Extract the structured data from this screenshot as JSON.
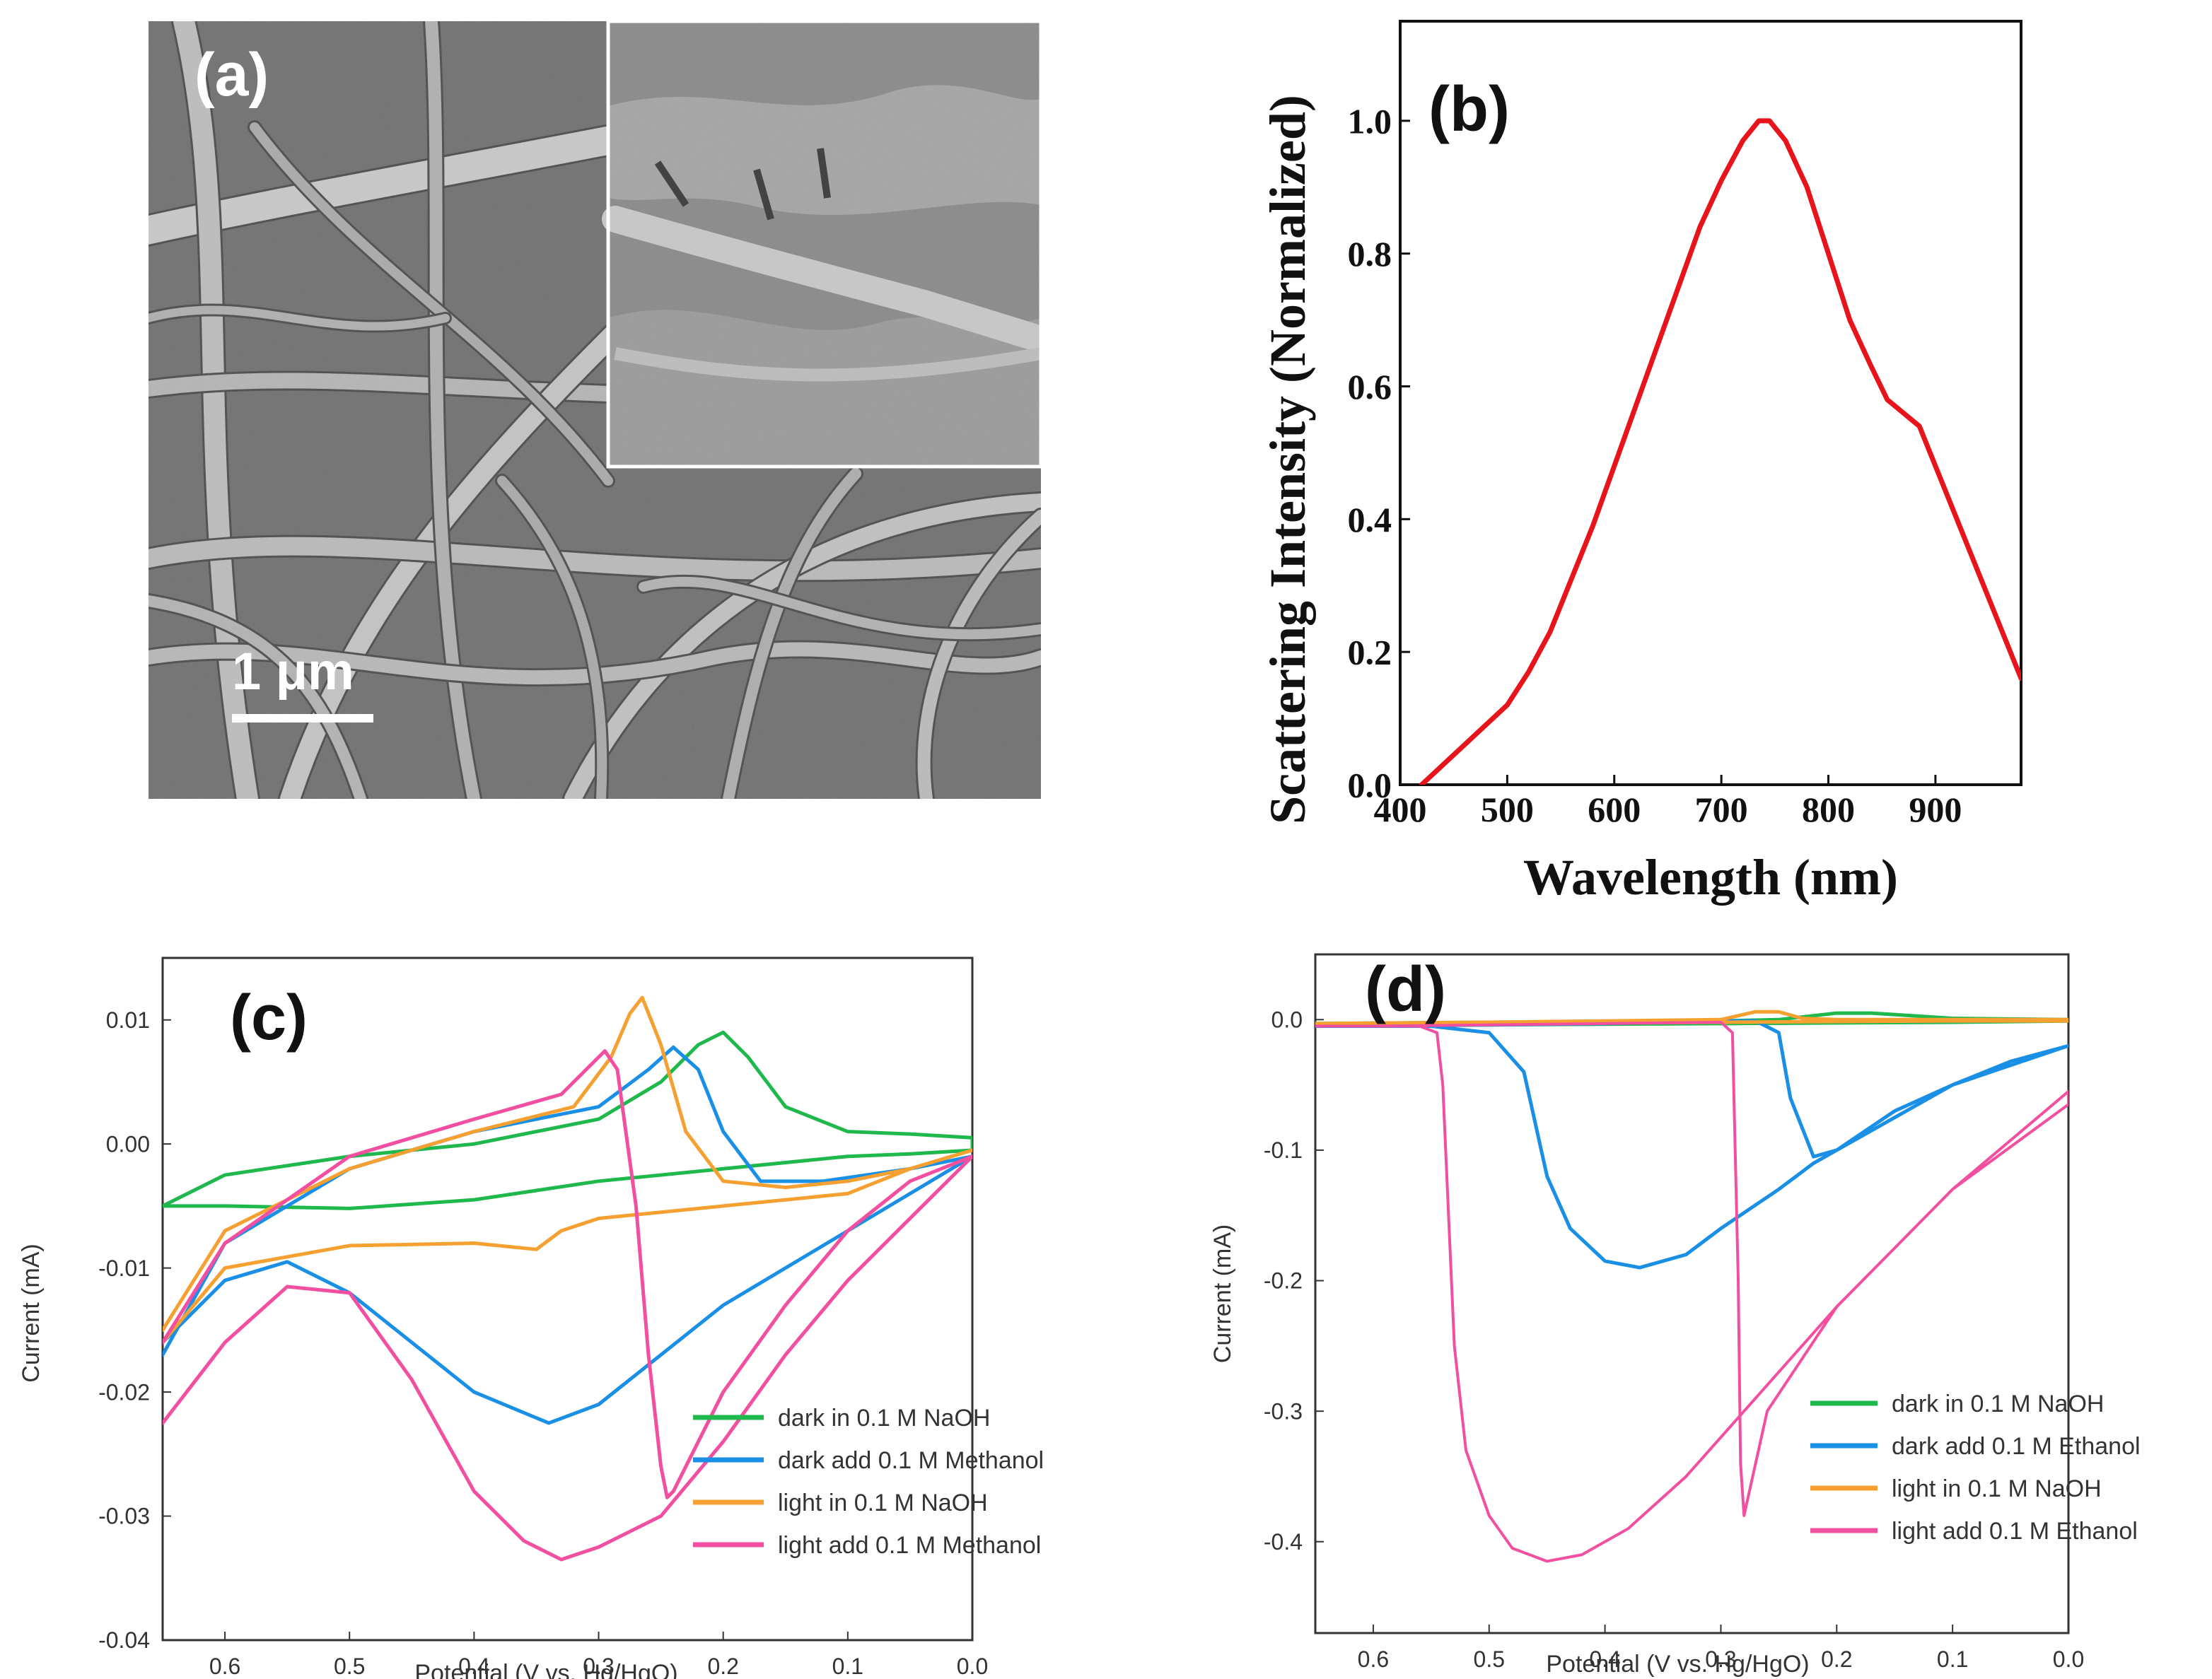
{
  "panels": {
    "a": {
      "label": "(a)",
      "scale_bar": "1 μm"
    },
    "b": {
      "label": "(b)"
    },
    "c": {
      "label": "(c)"
    },
    "d": {
      "label": "(d)"
    }
  },
  "chart_data": [
    {
      "id": "b",
      "type": "line",
      "title": "",
      "xlabel": "Wavelength (nm)",
      "ylabel": "Scattering Intensity (Normalized)",
      "xlim": [
        400,
        980
      ],
      "ylim": [
        0,
        1.15
      ],
      "xticks": [
        400,
        500,
        600,
        700,
        800,
        900
      ],
      "yticks": [
        0.0,
        0.2,
        0.4,
        0.6,
        0.8,
        1.0
      ],
      "ytick_labels": [
        "0.0",
        "0.2",
        "0.4",
        "0.6",
        "0.8",
        "1.0"
      ],
      "series": [
        {
          "name": "scattering",
          "color": "#e8141b",
          "x": [
            420,
            440,
            460,
            480,
            500,
            520,
            540,
            560,
            580,
            600,
            620,
            640,
            660,
            680,
            700,
            720,
            735,
            745,
            760,
            780,
            800,
            820,
            840,
            855,
            870,
            885,
            900,
            920,
            940,
            960,
            980
          ],
          "y": [
            0.0,
            0.03,
            0.06,
            0.09,
            0.12,
            0.17,
            0.23,
            0.31,
            0.39,
            0.48,
            0.57,
            0.66,
            0.75,
            0.84,
            0.91,
            0.97,
            1.0,
            1.0,
            0.97,
            0.9,
            0.8,
            0.7,
            0.63,
            0.58,
            0.56,
            0.54,
            0.48,
            0.4,
            0.32,
            0.24,
            0.16
          ]
        }
      ]
    },
    {
      "id": "c",
      "type": "line",
      "title": "",
      "xlabel": "Potential (V vs. Hg/HgO)",
      "ylabel": "Current (mA)",
      "xlim": [
        0.65,
        0.0
      ],
      "ylim": [
        -0.04,
        0.015
      ],
      "xticks": [
        0.6,
        0.5,
        0.4,
        0.3,
        0.2,
        0.1,
        0.0
      ],
      "xtick_labels": [
        "0.6",
        "0.5",
        "0.4",
        "0.3",
        "0.2",
        "0.1",
        "0.0"
      ],
      "yticks": [
        0.01,
        0.0,
        -0.01,
        -0.02,
        -0.03,
        -0.04
      ],
      "ytick_labels": [
        "0.01",
        "0.00",
        "-0.01",
        "-0.02",
        "-0.03",
        "-0.04"
      ],
      "legend": "bottom-right",
      "series": [
        {
          "name": "dark in 0.1 M NaOH",
          "color": "#1fb84c",
          "x": [
            0.65,
            0.6,
            0.5,
            0.4,
            0.3,
            0.25,
            0.22,
            0.2,
            0.18,
            0.15,
            0.1,
            0.05,
            0.0,
            0.0,
            0.05,
            0.1,
            0.2,
            0.3,
            0.4,
            0.5,
            0.6,
            0.65
          ],
          "y": [
            -0.005,
            -0.0025,
            -0.001,
            0.0,
            0.002,
            0.005,
            0.008,
            0.009,
            0.007,
            0.003,
            0.001,
            0.0008,
            0.0005,
            -0.0005,
            -0.0008,
            -0.001,
            -0.002,
            -0.003,
            -0.0045,
            -0.0052,
            -0.005,
            -0.005
          ]
        },
        {
          "name": "dark add 0.1 M Methanol",
          "color": "#1a8fe6",
          "x": [
            0.65,
            0.6,
            0.5,
            0.4,
            0.3,
            0.26,
            0.24,
            0.22,
            0.2,
            0.17,
            0.12,
            0.05,
            0.0,
            0.0,
            0.05,
            0.1,
            0.2,
            0.25,
            0.3,
            0.34,
            0.4,
            0.5,
            0.55,
            0.6,
            0.65
          ],
          "y": [
            -0.017,
            -0.008,
            -0.002,
            0.001,
            0.003,
            0.006,
            0.0078,
            0.006,
            0.001,
            -0.003,
            -0.003,
            -0.002,
            -0.001,
            -0.001,
            -0.004,
            -0.007,
            -0.013,
            -0.017,
            -0.021,
            -0.0225,
            -0.02,
            -0.012,
            -0.0095,
            -0.011,
            -0.016
          ]
        },
        {
          "name": "light in 0.1 M NaOH",
          "color": "#f5a031",
          "x": [
            0.65,
            0.6,
            0.5,
            0.4,
            0.32,
            0.29,
            0.275,
            0.265,
            0.25,
            0.23,
            0.2,
            0.15,
            0.1,
            0.05,
            0.0,
            0.0,
            0.05,
            0.1,
            0.2,
            0.3,
            0.33,
            0.35,
            0.4,
            0.5,
            0.6,
            0.65
          ],
          "y": [
            -0.015,
            -0.007,
            -0.002,
            0.001,
            0.003,
            0.007,
            0.0105,
            0.0118,
            0.008,
            0.001,
            -0.003,
            -0.0035,
            -0.003,
            -0.002,
            -0.0005,
            -0.0005,
            -0.002,
            -0.004,
            -0.005,
            -0.006,
            -0.007,
            -0.0085,
            -0.008,
            -0.0082,
            -0.01,
            -0.016
          ]
        },
        {
          "name": "light add 0.1 M Methanol",
          "color": "#f24fa0",
          "x": [
            0.65,
            0.6,
            0.5,
            0.4,
            0.33,
            0.305,
            0.295,
            0.285,
            0.27,
            0.26,
            0.25,
            0.245,
            0.24,
            0.23,
            0.2,
            0.15,
            0.1,
            0.05,
            0.0,
            0.0,
            0.05,
            0.1,
            0.15,
            0.2,
            0.25,
            0.3,
            0.33,
            0.36,
            0.4,
            0.45,
            0.5,
            0.55,
            0.6,
            0.65
          ],
          "y": [
            -0.016,
            -0.008,
            -0.001,
            0.002,
            0.004,
            0.0065,
            0.0075,
            0.006,
            -0.005,
            -0.017,
            -0.026,
            -0.0285,
            -0.028,
            -0.026,
            -0.02,
            -0.013,
            -0.007,
            -0.003,
            -0.001,
            -0.001,
            -0.006,
            -0.011,
            -0.017,
            -0.024,
            -0.03,
            -0.0325,
            -0.0335,
            -0.032,
            -0.028,
            -0.019,
            -0.012,
            -0.0115,
            -0.016,
            -0.0225
          ]
        }
      ]
    },
    {
      "id": "d",
      "type": "line",
      "title": "",
      "xlabel": "Potential (V vs. Hg/HgO)",
      "ylabel": "Current (mA)",
      "xlim": [
        0.65,
        0.0
      ],
      "ylim": [
        -0.47,
        0.05
      ],
      "xticks": [
        0.6,
        0.5,
        0.4,
        0.3,
        0.2,
        0.1,
        0.0
      ],
      "xtick_labels": [
        "0.6",
        "0.5",
        "0.4",
        "0.3",
        "0.2",
        "0.1",
        "0.0"
      ],
      "yticks": [
        0.0,
        -0.1,
        -0.2,
        -0.3,
        -0.4
      ],
      "ytick_labels": [
        "0.0",
        "-0.1",
        "-0.2",
        "-0.3",
        "-0.4"
      ],
      "legend": "bottom-right",
      "series": [
        {
          "name": "dark in 0.1 M NaOH",
          "color": "#1fb84c",
          "x": [
            0.65,
            0.5,
            0.3,
            0.25,
            0.2,
            0.17,
            0.1,
            0.0,
            0.0,
            0.1,
            0.3,
            0.5,
            0.65
          ],
          "y": [
            -0.003,
            -0.002,
            -0.001,
            0.0,
            0.005,
            0.005,
            0.001,
            0.0,
            -0.001,
            -0.002,
            -0.003,
            -0.004,
            -0.004
          ],
          "width": 5
        },
        {
          "name": "dark add 0.1 M Ethanol",
          "color": "#1a8fe6",
          "x": [
            0.65,
            0.55,
            0.5,
            0.47,
            0.45,
            0.43,
            0.4,
            0.37,
            0.33,
            0.3,
            0.25,
            0.22,
            0.2,
            0.15,
            0.1,
            0.05,
            0.0,
            0.0,
            0.05,
            0.1,
            0.15,
            0.2,
            0.22,
            0.24,
            0.25,
            0.27,
            0.3,
            0.4,
            0.5,
            0.6,
            0.65
          ],
          "y": [
            -0.005,
            -0.005,
            -0.01,
            -0.04,
            -0.12,
            -0.16,
            -0.185,
            -0.19,
            -0.18,
            -0.16,
            -0.13,
            -0.11,
            -0.1,
            -0.075,
            -0.05,
            -0.032,
            -0.02,
            -0.02,
            -0.035,
            -0.05,
            -0.07,
            -0.1,
            -0.105,
            -0.06,
            -0.01,
            -0.001,
            -0.001,
            -0.003,
            -0.004,
            -0.005,
            -0.005
          ],
          "width": 5
        },
        {
          "name": "light in 0.1 M NaOH",
          "color": "#f5a031",
          "x": [
            0.65,
            0.5,
            0.3,
            0.27,
            0.25,
            0.23,
            0.2,
            0.1,
            0.0,
            0.0,
            0.1,
            0.3,
            0.5,
            0.65
          ],
          "y": [
            -0.003,
            -0.002,
            0.0,
            0.006,
            0.006,
            0.001,
            0.0,
            0.0,
            0.0,
            -0.001,
            -0.001,
            -0.002,
            -0.003,
            -0.003
          ],
          "width": 5
        },
        {
          "name": "light add 0.1 M Ethanol",
          "color": "#f24fa0",
          "x": [
            0.65,
            0.56,
            0.545,
            0.54,
            0.535,
            0.53,
            0.52,
            0.5,
            0.48,
            0.45,
            0.42,
            0.38,
            0.33,
            0.28,
            0.2,
            0.1,
            0.0,
            0.0,
            0.1,
            0.2,
            0.26,
            0.28,
            0.283,
            0.285,
            0.29,
            0.3,
            0.4,
            0.5,
            0.6,
            0.65
          ],
          "y": [
            -0.005,
            -0.005,
            -0.01,
            -0.05,
            -0.15,
            -0.25,
            -0.33,
            -0.38,
            -0.405,
            -0.415,
            -0.41,
            -0.39,
            -0.35,
            -0.3,
            -0.22,
            -0.13,
            -0.065,
            -0.055,
            -0.13,
            -0.22,
            -0.3,
            -0.38,
            -0.34,
            -0.2,
            -0.01,
            -0.002,
            -0.003,
            -0.004,
            -0.005,
            -0.005
          ],
          "width": 4
        }
      ]
    }
  ]
}
